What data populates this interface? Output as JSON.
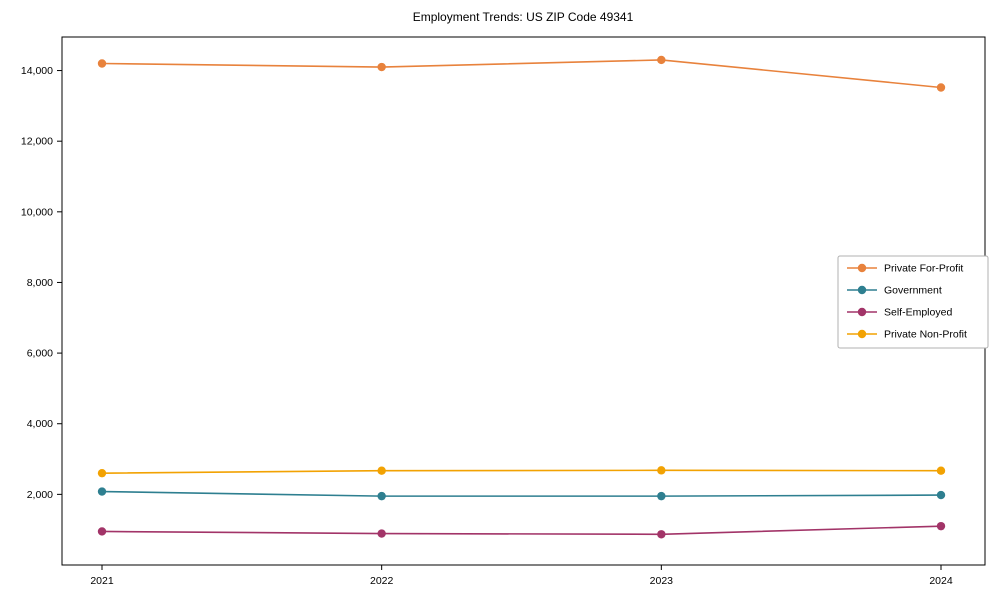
{
  "title": "Employment Trends: US ZIP Code 49341",
  "chart_data": {
    "type": "line",
    "title": "Employment Trends: US ZIP Code 49341",
    "xlabel": "",
    "ylabel": "",
    "x": [
      2021,
      2022,
      2023,
      2024
    ],
    "xtick_labels": [
      "2021",
      "2022",
      "2023",
      "2024"
    ],
    "series": [
      {
        "name": "Private For-Profit",
        "color": "#e8823c",
        "values": [
          14200,
          14100,
          14300,
          13520
        ]
      },
      {
        "name": "Government",
        "color": "#2e7f90",
        "values": [
          2080,
          1950,
          1950,
          1980
        ]
      },
      {
        "name": "Self-Employed",
        "color": "#a23468",
        "values": [
          950,
          890,
          870,
          1100
        ]
      },
      {
        "name": "Private Non-Profit",
        "color": "#f2a202",
        "values": [
          2600,
          2670,
          2680,
          2670
        ]
      }
    ],
    "ylim": [
      0,
      14950
    ],
    "yticks": [
      2000,
      4000,
      6000,
      8000,
      10000,
      12000,
      14000
    ],
    "ytick_labels": [
      "2,000",
      "4,000",
      "6,000",
      "8,000",
      "10,000",
      "12,000",
      "14,000"
    ],
    "grid": false,
    "legend_position": "center right",
    "marker": "circle",
    "axis_color": "#000000"
  }
}
